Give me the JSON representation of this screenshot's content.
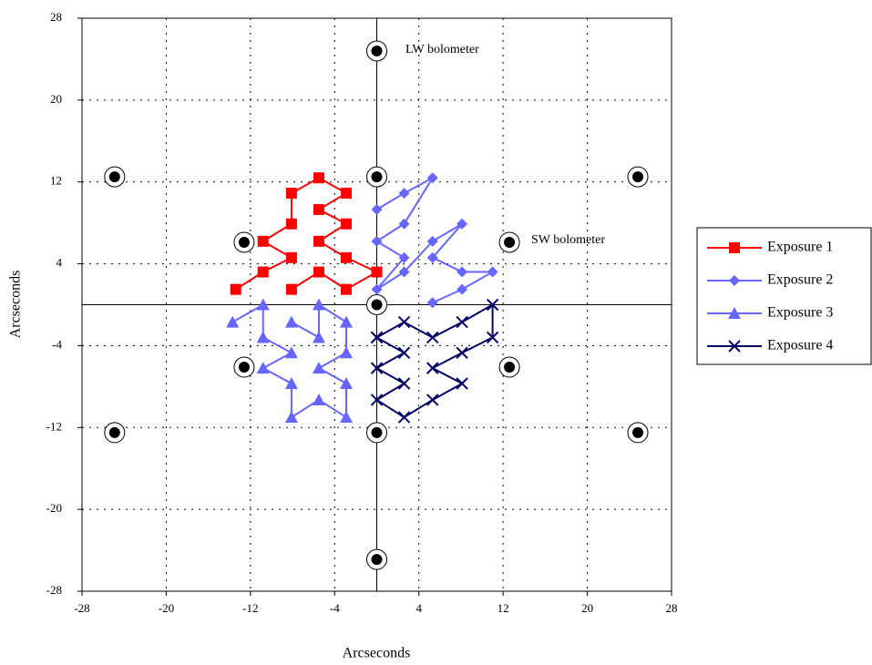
{
  "chart_data": {
    "type": "line",
    "x_label": "Arcseconds",
    "y_label": "Arcseconds",
    "xlim": [
      -28,
      28
    ],
    "ylim": [
      -28,
      28
    ],
    "xticks": [
      -28,
      -20,
      -12,
      -4,
      4,
      12,
      20,
      28
    ],
    "yticks": [
      -28,
      -20,
      -12,
      -4,
      4,
      12,
      20,
      28
    ],
    "grid": true,
    "legend": "right",
    "annotations": [
      "LW bolometer",
      "SW bolometer"
    ],
    "bolometers": {
      "x": [
        0,
        -24.9,
        0,
        24.8,
        -12.6,
        12.6,
        0,
        -12.6,
        12.6,
        -24.9,
        0,
        24.8,
        0
      ],
      "y": [
        24.8,
        12.5,
        12.5,
        12.5,
        6.1,
        6.1,
        0,
        -6.1,
        -6.1,
        -12.5,
        -12.5,
        -12.5,
        -24.9
      ]
    },
    "series": [
      {
        "name": "Exposure 1",
        "color": "#ff0000",
        "marker": "square",
        "x": [
          -13.4,
          -10.8,
          -8.1,
          -10.8,
          -8.1,
          -8.1,
          -5.5,
          -2.9,
          -5.5,
          -2.9,
          -5.5,
          -2.9,
          0,
          -2.9,
          -5.5,
          -8.1
        ],
        "y": [
          1.5,
          3.2,
          4.6,
          6.2,
          7.9,
          10.9,
          12.4,
          10.9,
          9.3,
          7.9,
          6.2,
          4.6,
          3.2,
          1.5,
          3.2,
          1.5
        ]
      },
      {
        "name": "Exposure 2",
        "color": "#6666ff",
        "marker": "diamond",
        "x": [
          0,
          2.6,
          5.3,
          2.6,
          0,
          2.6,
          0,
          2.6,
          5.3,
          8.1,
          5.3,
          8.1,
          11,
          8.1,
          5.3
        ],
        "y": [
          9.3,
          10.9,
          12.4,
          7.9,
          6.2,
          4.6,
          1.5,
          3.2,
          6.2,
          7.9,
          4.6,
          3.2,
          3.2,
          1.5,
          0.2
        ]
      },
      {
        "name": "Exposure 3",
        "color": "#6666ff",
        "marker": "triangle",
        "x": [
          -13.7,
          -10.8,
          -10.8,
          -8.1,
          -10.8,
          -8.1,
          -8.1,
          -5.5,
          -2.9,
          -2.9,
          -5.5,
          -2.9,
          -2.9,
          -5.5,
          -5.5,
          -8.1
        ],
        "y": [
          -1.7,
          0,
          -3.2,
          -4.7,
          -6.2,
          -7.7,
          -11,
          -9.3,
          -11,
          -7.7,
          -6.2,
          -4.7,
          -1.7,
          0,
          -3.2,
          -1.7
        ]
      },
      {
        "name": "Exposure 4",
        "color": "#000066",
        "marker": "x",
        "x": [
          0,
          2.6,
          0,
          2.6,
          0,
          2.6,
          5.3,
          8.1,
          5.3,
          8.1,
          11,
          11,
          8.1,
          5.3,
          2.6,
          0
        ],
        "y": [
          -3.2,
          -4.7,
          -6.2,
          -7.7,
          -9.3,
          -11,
          -9.3,
          -7.7,
          -6.2,
          -4.7,
          -3.2,
          0,
          -1.7,
          -3.2,
          -1.7,
          -3.2
        ]
      }
    ]
  }
}
